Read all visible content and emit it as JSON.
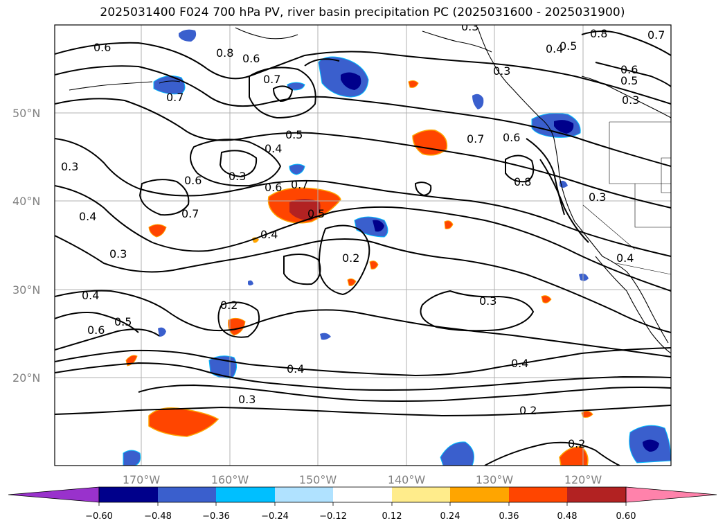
{
  "title": "2025031400 F024 700 hPa PV, river basin precipitation PC (2025031600 - 2025031900)",
  "lat_labels": [
    "50°N",
    "40°N",
    "30°N",
    "20°N"
  ],
  "lon_labels": [
    "170°W",
    "160°W",
    "150°W",
    "140°W",
    "130°W",
    "120°W"
  ],
  "contour_labels": [
    "0.6",
    "0.8",
    "0.6",
    "0.7",
    "0.7",
    "0.5",
    "0.3",
    "0.4",
    "0.6",
    "0.7",
    "0.5",
    "0.4",
    "0.3",
    "0.6",
    "0.7",
    "0.4",
    "0.3",
    "0.4",
    "0.5",
    "0.6",
    "0.2",
    "0.2",
    "0.4",
    "0.3",
    "0.2",
    "0.3",
    "0.4",
    "0.2",
    "0.7",
    "0.6",
    "0.8",
    "0.3",
    "0.4",
    "0.3",
    "0.6",
    "0.5",
    "0.3",
    "0.8",
    "0.7",
    "0.4",
    "0.3",
    "0.5"
  ],
  "colorbar": {
    "tick_labels": [
      "−0.60",
      "−0.48",
      "−0.36",
      "−0.24",
      "−0.12",
      "0.12",
      "0.24",
      "0.36",
      "0.48",
      "0.60"
    ],
    "colors": [
      "#9932cc",
      "#00008b",
      "#3a5fcd",
      "#00bfff",
      "#b0e2ff",
      "#ffffff",
      "#ffec8b",
      "#ffa500",
      "#ff4500",
      "#b22222",
      "#ff82ab"
    ]
  },
  "shading_colors": {
    "strong_negative": "#00008b",
    "negative": "#3a5fcd",
    "weak_negative": "#00bfff",
    "weak_positive": "#ffa500",
    "positive": "#ff4500",
    "strong_positive": "#b22222"
  }
}
